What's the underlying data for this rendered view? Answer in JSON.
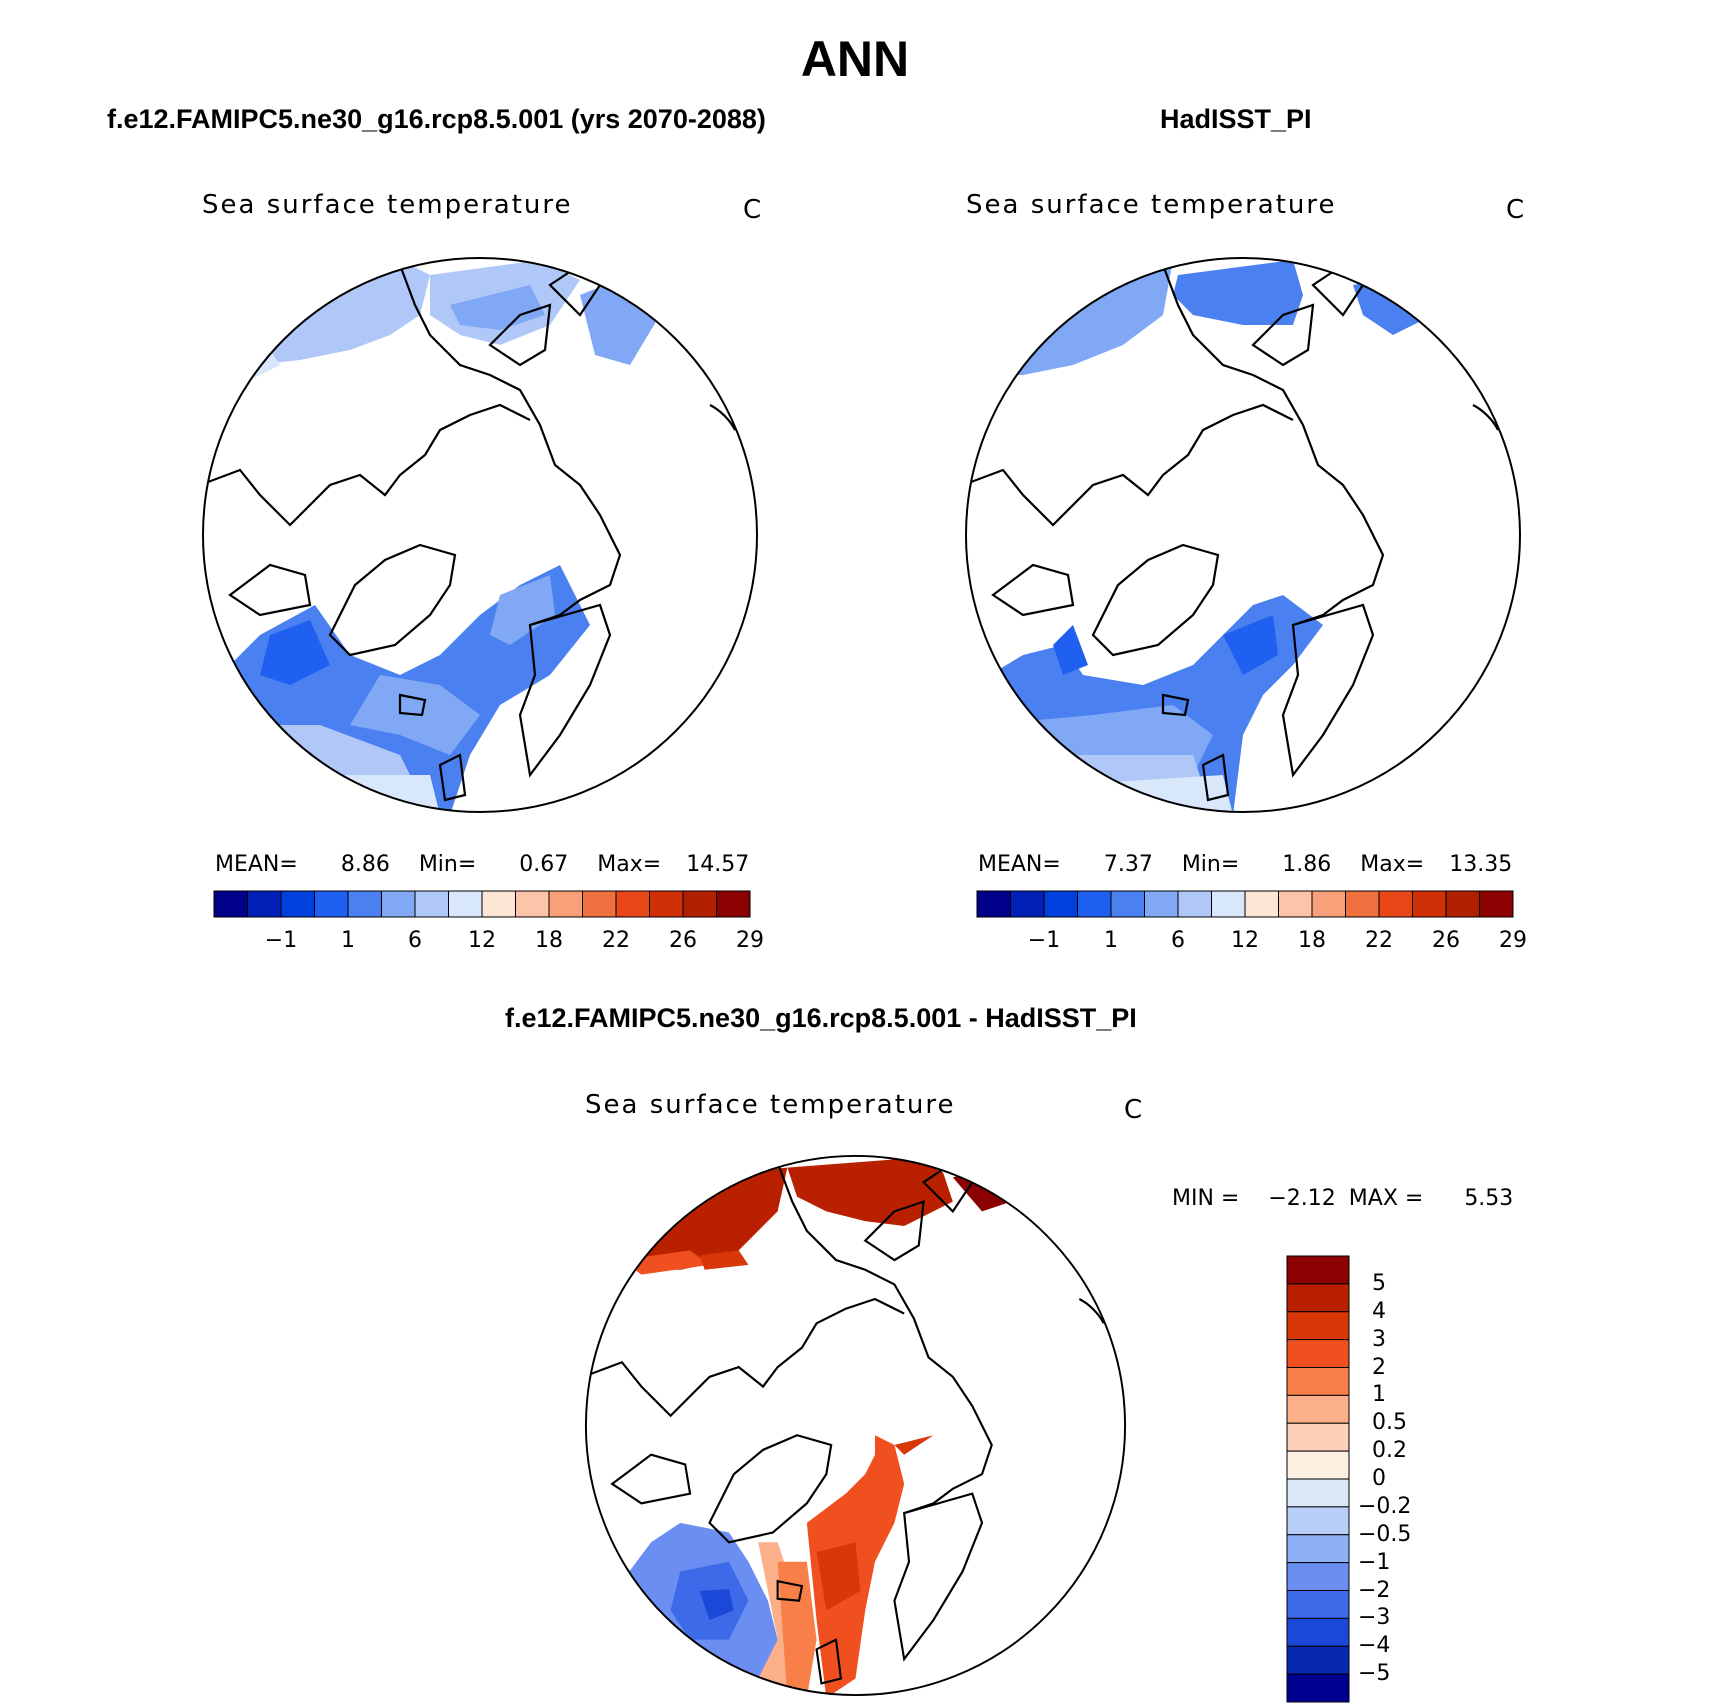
{
  "figure": {
    "title": "ANN",
    "panels": {
      "left": {
        "case_label": "f.e12.FAMIPC5.ne30_g16.rcp8.5.001 (yrs 2070-2088)",
        "variable": "Sea surface temperature",
        "units": "C",
        "stats": {
          "mean_label": "MEAN=",
          "mean": "8.86",
          "min_label": "Min=",
          "min": "0.67",
          "max_label": "Max=",
          "max": "14.57"
        }
      },
      "right": {
        "case_label": "HadISST_PI",
        "variable": "Sea surface temperature",
        "units": "C",
        "stats": {
          "mean_label": "MEAN=",
          "mean": "7.37",
          "min_label": "Min=",
          "min": "1.86",
          "max_label": "Max=",
          "max": "13.35"
        }
      },
      "diff": {
        "case_label": "f.e12.FAMIPC5.ne30_g16.rcp8.5.001 - HadISST_PI",
        "variable": "Sea surface temperature",
        "units": "C",
        "stats": {
          "min_label": "MIN =",
          "min": "−2.12",
          "max_label": "MAX =",
          "max": "5.53"
        }
      }
    }
  },
  "chart_data": [
    {
      "type": "heatmap",
      "title": "Sea surface temperature",
      "projection": "north-polar-stereographic",
      "units": "C",
      "colorbar": {
        "orientation": "horizontal",
        "levels": [
          "−1",
          "1",
          "6",
          "12",
          "18",
          "22",
          "26",
          "29"
        ],
        "colors": [
          "#00008b",
          "#0020b8",
          "#0040dd",
          "#2060f0",
          "#4a80f0",
          "#80a8f4",
          "#b0c8f8",
          "#d8e8fa",
          "#fde6d6",
          "#fcc4a8",
          "#f8a07a",
          "#f07040",
          "#e84818",
          "#d03008",
          "#b02000",
          "#8b0000"
        ]
      },
      "summary": {
        "mean": 8.86,
        "min": 0.67,
        "max": 14.57
      }
    },
    {
      "type": "heatmap",
      "title": "Sea surface temperature",
      "projection": "north-polar-stereographic",
      "units": "C",
      "colorbar": {
        "orientation": "horizontal",
        "levels": [
          "−1",
          "1",
          "6",
          "12",
          "18",
          "22",
          "26",
          "29"
        ],
        "colors": [
          "#00008b",
          "#0020b8",
          "#0040dd",
          "#2060f0",
          "#4a80f0",
          "#80a8f4",
          "#b0c8f8",
          "#d8e8fa",
          "#fde6d6",
          "#fcc4a8",
          "#f8a07a",
          "#f07040",
          "#e84818",
          "#d03008",
          "#b02000",
          "#8b0000"
        ]
      },
      "summary": {
        "mean": 7.37,
        "min": 1.86,
        "max": 13.35
      }
    },
    {
      "type": "heatmap",
      "title": "Sea surface temperature",
      "projection": "north-polar-stereographic",
      "units": "C",
      "colorbar": {
        "orientation": "vertical",
        "levels": [
          "5",
          "4",
          "3",
          "2",
          "1",
          "0.5",
          "0.2",
          "0",
          "−0.2",
          "−0.5",
          "−1",
          "−2",
          "−3",
          "−4",
          "−5"
        ],
        "colors": [
          "#8b0000",
          "#b82000",
          "#d83808",
          "#f05020",
          "#f88048",
          "#fcb08a",
          "#fdd0b8",
          "#fdeee2",
          "#dae8f8",
          "#b8d0f8",
          "#90b0f5",
          "#6a8ef2",
          "#3c6ae8",
          "#1c48d8",
          "#0828b0",
          "#000090"
        ]
      },
      "summary": {
        "min": -2.12,
        "max": 5.53
      }
    }
  ]
}
